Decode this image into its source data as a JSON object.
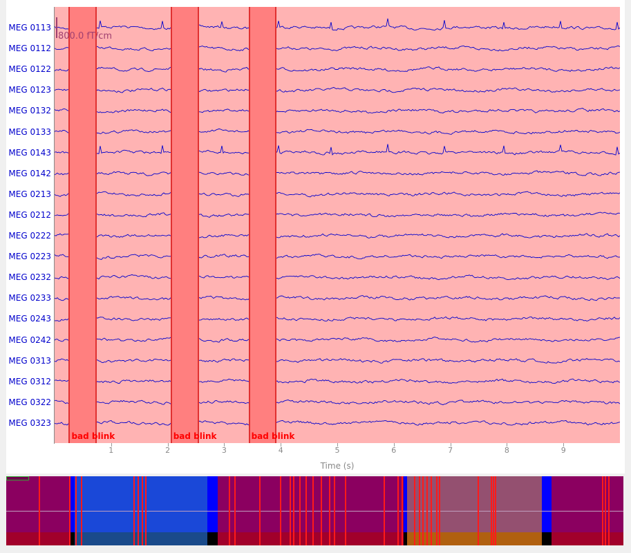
{
  "channels": [
    "MEG 0113",
    "MEG 0112",
    "MEG 0122",
    "MEG 0123",
    "MEG 0132",
    "MEG 0133",
    "MEG 0143",
    "MEG 0142",
    "MEG 0213",
    "MEG 0212",
    "MEG 0222",
    "MEG 0223",
    "MEG 0232",
    "MEG 0233",
    "MEG 0243",
    "MEG 0242",
    "MEG 0313",
    "MEG 0312",
    "MEG 0322",
    "MEG 0323"
  ],
  "scale_label": "800.0 fT/cm",
  "annotations": [
    {
      "label": "bad blink",
      "start_s": 0.25,
      "end_s": 0.75
    },
    {
      "label": "bad blink",
      "start_s": 2.05,
      "end_s": 2.56
    },
    {
      "label": "bad blink",
      "start_s": 3.43,
      "end_s": 3.93
    }
  ],
  "xaxis": {
    "label": "Time (s)",
    "ticks": [
      "1",
      "2",
      "3",
      "4",
      "5",
      "6",
      "7",
      "8",
      "9"
    ],
    "range": [
      0,
      10
    ]
  },
  "colors": {
    "trace": "#0000cc",
    "background_bad": "#ffb3b3",
    "annotation": "#ff7f7f",
    "annotation_text": "#ff0000"
  }
}
